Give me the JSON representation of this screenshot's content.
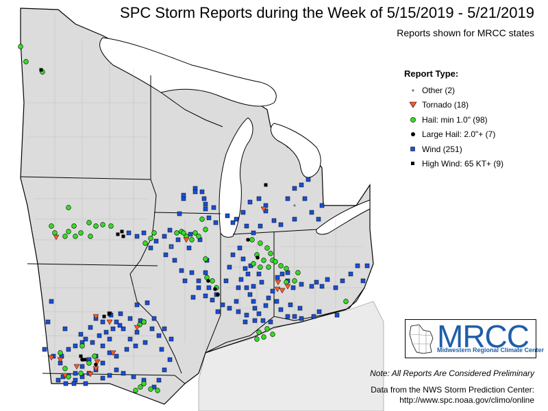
{
  "map": {
    "title": "SPC Storm Reports during the Week of 5/15/2019 - 5/21/2019",
    "subtitle": "Reports shown for MRCC states",
    "legend": {
      "heading": "Report Type:",
      "items": [
        {
          "label": "Other (2)",
          "type": "other",
          "color": "#777777"
        },
        {
          "label": "Tornado (18)",
          "type": "tornado",
          "color": "#ff5a2a"
        },
        {
          "label": "Hail: min 1.0\" (98)",
          "type": "hail",
          "color": "#33dd22"
        },
        {
          "label": "Large Hail: 2.0\"+ (7)",
          "type": "large-hail",
          "color": "#000000"
        },
        {
          "label": "Wind (251)",
          "type": "wind",
          "color": "#1a4fd6"
        },
        {
          "label": "High Wind: 65 KT+ (9)",
          "type": "high-wind",
          "color": "#000000"
        }
      ]
    },
    "logo": {
      "text": "MRCC",
      "subtext": "Midwestern Regional Climate Center",
      "color": "#1f5ea8"
    },
    "note": "Note: All Reports Are Considered Preliminary",
    "credit_line1": "Data from the NWS Storm Prediction Center:",
    "credit_line2": "http://www.spc.noaa.gov/climo/online",
    "colors": {
      "land": "#dcdcdc",
      "outside": "#ebebeb",
      "lake": "#ffffff",
      "border": "#000000"
    }
  }
}
